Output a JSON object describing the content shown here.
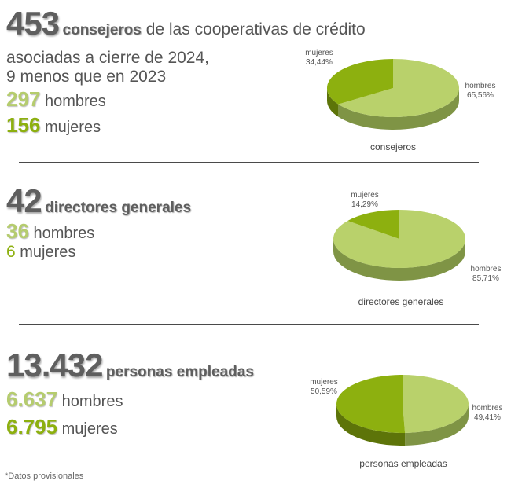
{
  "sections": [
    {
      "headline": {
        "number": "453",
        "bold": "consejeros",
        "rest": " de las cooperativas de crédito"
      },
      "line2": "asociadas a cierre de 2024,",
      "line3": "9 menos que en 2023",
      "men": {
        "number": "297",
        "label": " hombres"
      },
      "women": {
        "number": "156",
        "label": " mujeres"
      }
    },
    {
      "headline": {
        "number": "42",
        "bold": "directores generales"
      },
      "men": {
        "number": "36",
        "label": " hombres"
      },
      "women": {
        "number": "6",
        "label": " mujeres"
      }
    },
    {
      "headline": {
        "number": "13.432",
        "bold": "personas empleadas"
      },
      "men": {
        "number": "6.637",
        "label": " hombres"
      },
      "women": {
        "number": "6.795",
        "label": " mujeres"
      }
    }
  ],
  "footnote": "*Datos provisionales",
  "colors": {
    "hombres": "#b9d16b",
    "mujeres": "#8db00f",
    "text": "#5f5f5f"
  },
  "chart_data": [
    {
      "type": "pie",
      "title": "consejeros",
      "slices": [
        {
          "name": "hombres",
          "value": 65.56,
          "label": "65,56%"
        },
        {
          "name": "mujeres",
          "value": 34.44,
          "label": "34,44%"
        }
      ]
    },
    {
      "type": "pie",
      "title": "directores generales",
      "slices": [
        {
          "name": "hombres",
          "value": 85.71,
          "label": "85,71%"
        },
        {
          "name": "mujeres",
          "value": 14.29,
          "label": "14,29%"
        }
      ]
    },
    {
      "type": "pie",
      "title": "personas empleadas",
      "slices": [
        {
          "name": "hombres",
          "value": 49.41,
          "label": "49,41%"
        },
        {
          "name": "mujeres",
          "value": 50.59,
          "label": "50,59%"
        }
      ]
    }
  ]
}
